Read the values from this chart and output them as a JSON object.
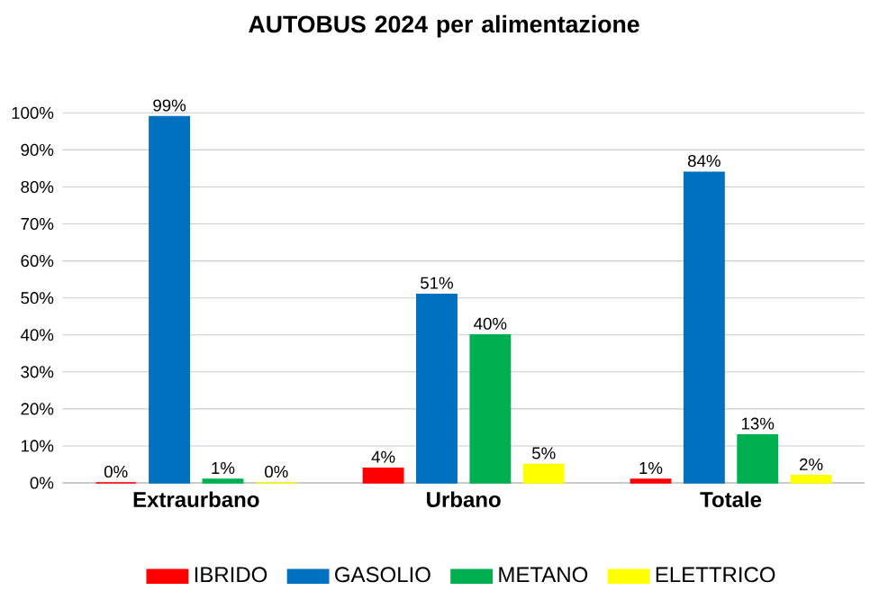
{
  "chart_data": {
    "type": "bar",
    "title": "AUTOBUS 2024 per alimentazione",
    "categories": [
      "Extraurbano",
      "Urbano",
      "Totale"
    ],
    "series": [
      {
        "name": "IBRIDO",
        "color": "#ff0000",
        "values": [
          0,
          4,
          1
        ],
        "value_labels": [
          "0%",
          "4%",
          "1%"
        ]
      },
      {
        "name": "GASOLIO",
        "color": "#0070c0",
        "values": [
          99,
          51,
          84
        ],
        "value_labels": [
          "99%",
          "51%",
          "84%"
        ]
      },
      {
        "name": "METANO",
        "color": "#00b050",
        "values": [
          1,
          40,
          13
        ],
        "value_labels": [
          "1%",
          "40%",
          "13%"
        ]
      },
      {
        "name": "ELETTRICO",
        "color": "#ffff00",
        "values": [
          0,
          5,
          2
        ],
        "value_labels": [
          "0%",
          "5%",
          "2%"
        ]
      }
    ],
    "ylim": [
      0,
      100
    ],
    "yticks": [
      {
        "value": 0,
        "label": "0%"
      },
      {
        "value": 10,
        "label": "10%"
      },
      {
        "value": 20,
        "label": "20%"
      },
      {
        "value": 30,
        "label": "30%"
      },
      {
        "value": 40,
        "label": "40%"
      },
      {
        "value": 50,
        "label": "50%"
      },
      {
        "value": 60,
        "label": "60%"
      },
      {
        "value": 70,
        "label": "70%"
      },
      {
        "value": 80,
        "label": "80%"
      },
      {
        "value": 90,
        "label": "90%"
      },
      {
        "value": 100,
        "label": "100%"
      }
    ],
    "grid": "y",
    "legend": "bottom"
  }
}
